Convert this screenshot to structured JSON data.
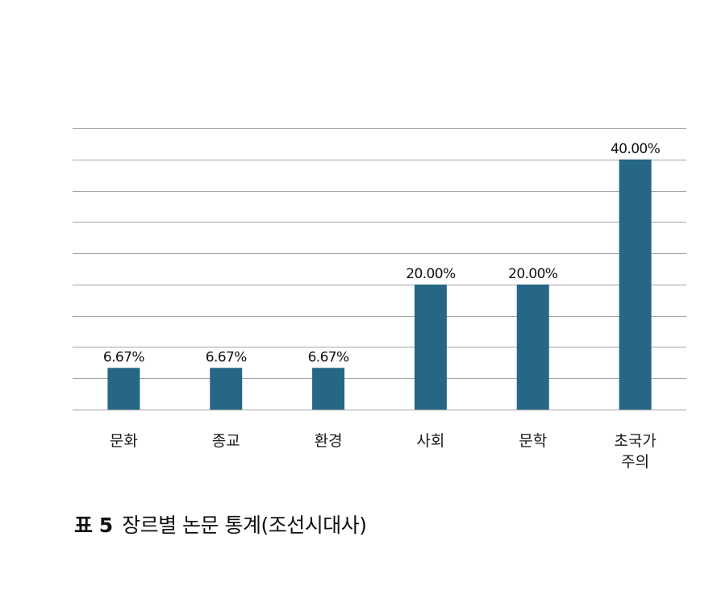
{
  "caption": {
    "label": "표 5",
    "text": "장르별 논문 통계(조선시대사)"
  },
  "chart_data": {
    "type": "bar",
    "categories": [
      "문화",
      "종교",
      "환경",
      "사회",
      "문학",
      "초국가\n주의"
    ],
    "values": [
      6.67,
      6.67,
      6.67,
      20.0,
      20.0,
      40.0
    ],
    "data_labels": [
      "6.67%",
      "6.67%",
      "6.67%",
      "20.00%",
      "20.00%",
      "40.00%"
    ],
    "ylim": [
      0,
      45
    ],
    "grid_step": 5,
    "grid": true,
    "y_axis_labels": false,
    "bar_color": "#266786",
    "grid_color": "#a6a6a6"
  }
}
